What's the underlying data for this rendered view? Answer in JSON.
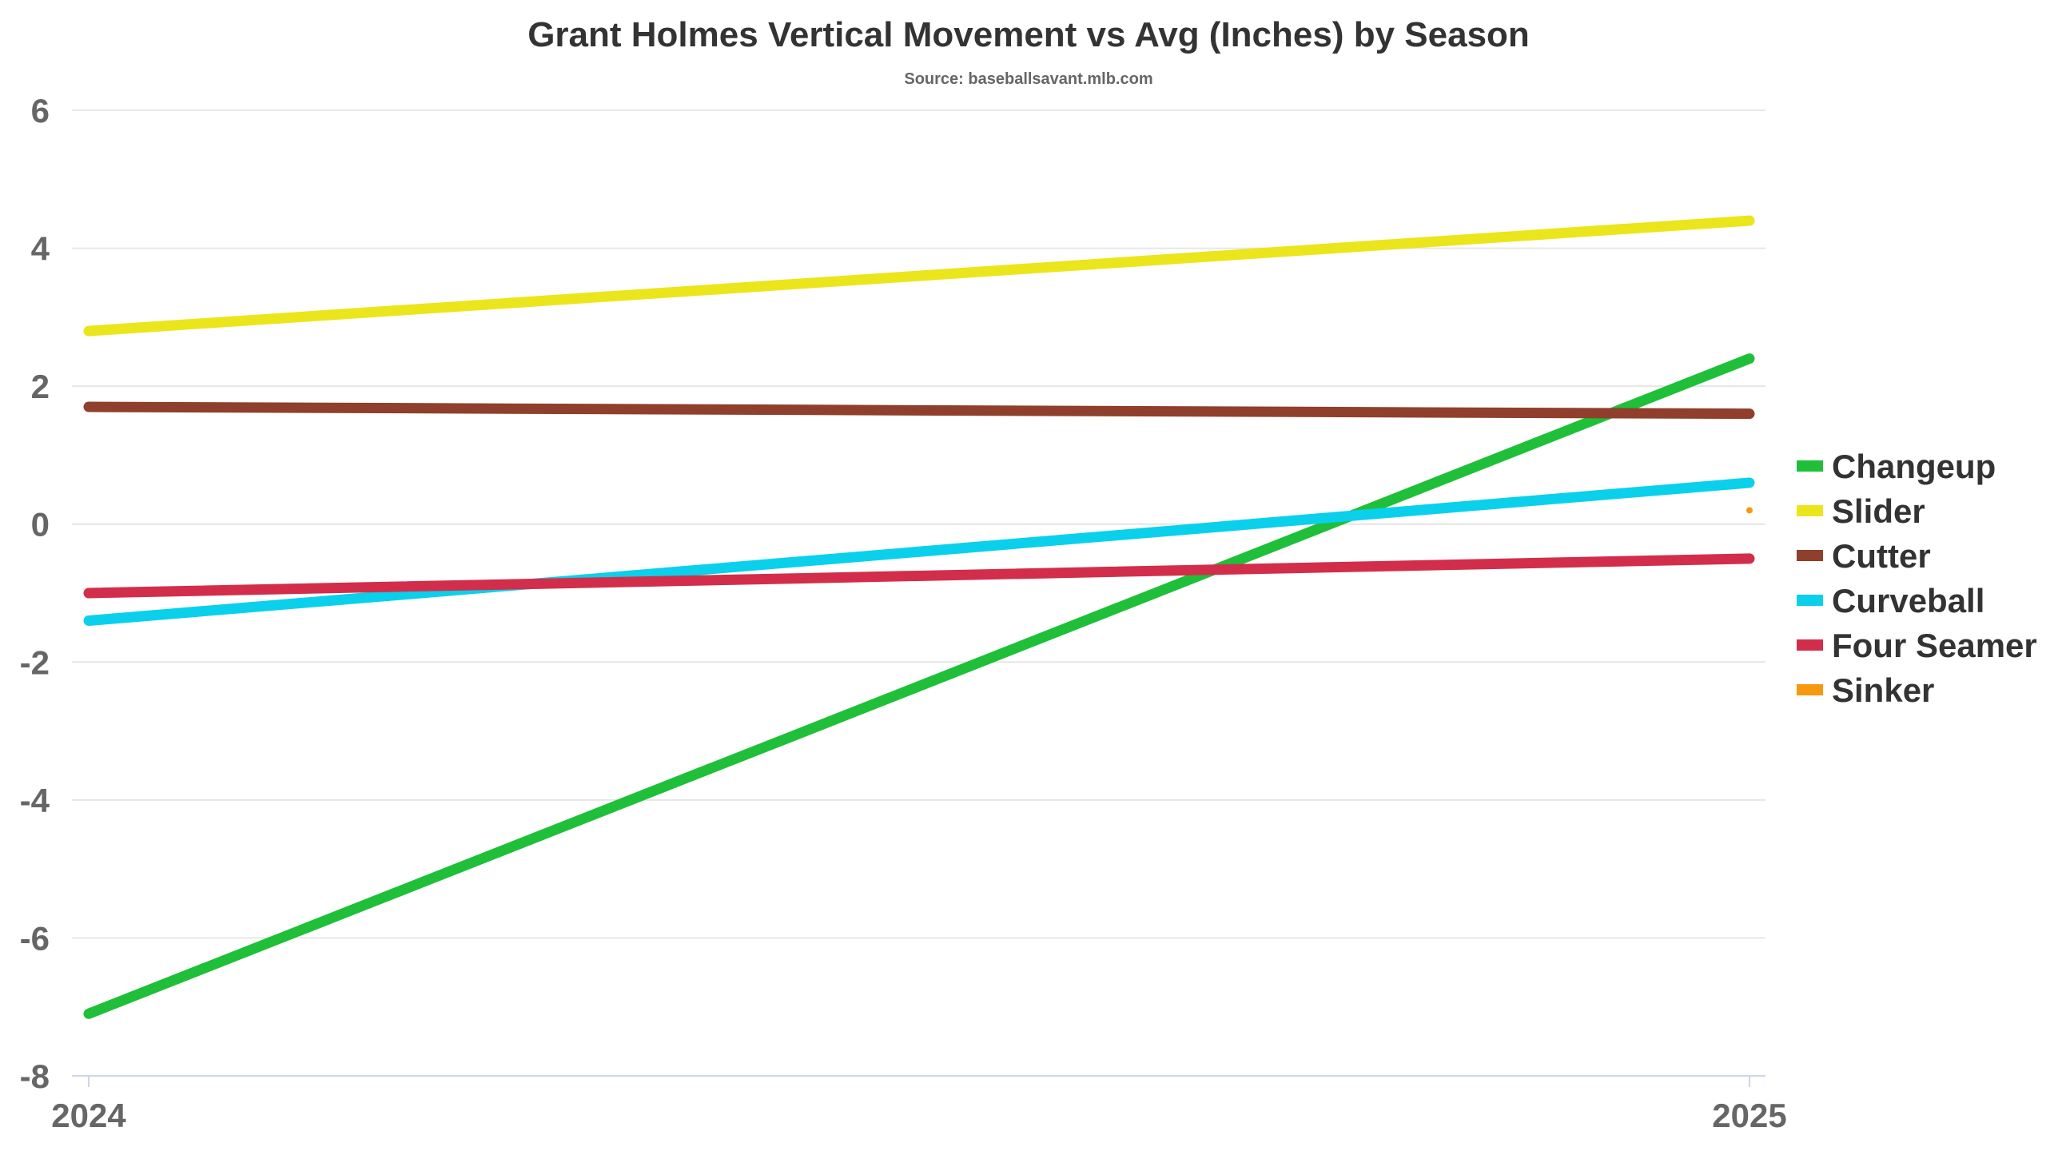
{
  "chart_data": {
    "type": "line",
    "title": "Grant Holmes Vertical Movement vs Avg (Inches) by Season",
    "subtitle": "Source: baseballsavant.mlb.com",
    "xlabel": "",
    "ylabel": "",
    "categories": [
      "2024",
      "2025"
    ],
    "ylim": [
      -8,
      6
    ],
    "yticks": [
      "6",
      "4",
      "2",
      "0",
      "-2",
      "-4",
      "-6",
      "-8"
    ],
    "grid": true,
    "legend_position": "right",
    "series": [
      {
        "name": "Changeup",
        "color": "#1fbf3a",
        "values": [
          -7.1,
          2.4
        ]
      },
      {
        "name": "Slider",
        "color": "#ebe51c",
        "values": [
          2.8,
          4.4
        ]
      },
      {
        "name": "Cutter",
        "color": "#8f3f2b",
        "values": [
          1.7,
          1.6
        ]
      },
      {
        "name": "Curveball",
        "color": "#0ad0eb",
        "values": [
          -1.4,
          0.6
        ]
      },
      {
        "name": "Four Seamer",
        "color": "#d22e4b",
        "values": [
          -1.0,
          -0.5
        ]
      },
      {
        "name": "Sinker",
        "color": "#f7990f",
        "values": [
          null,
          0.2
        ]
      }
    ]
  }
}
